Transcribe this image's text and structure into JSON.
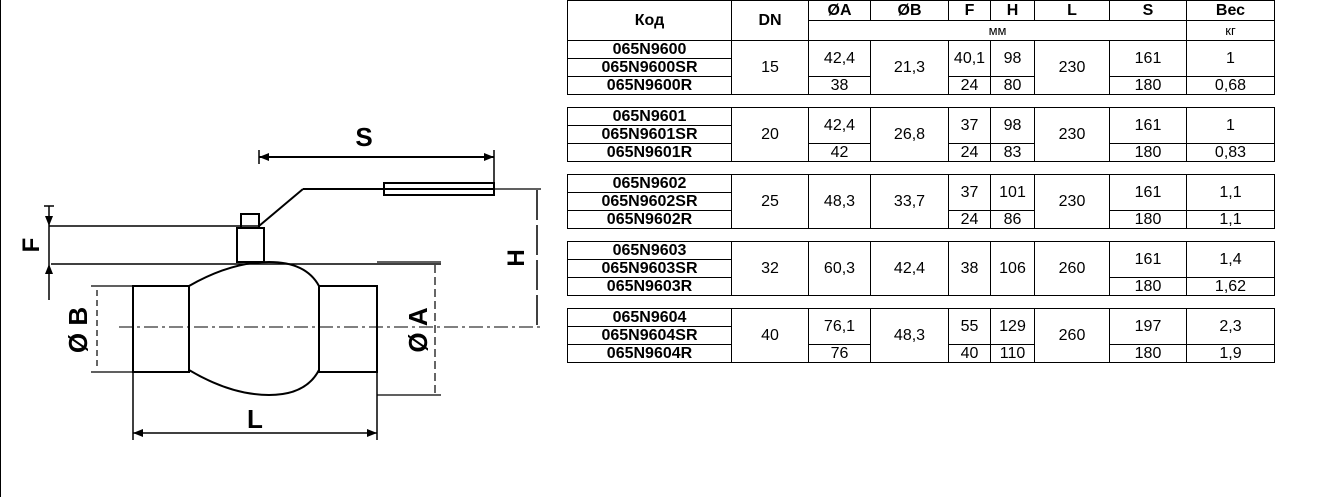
{
  "drawing": {
    "labels": {
      "S": "S",
      "F": "F",
      "H": "H",
      "B": "Ø B",
      "A": "Ø A",
      "L": "L"
    }
  },
  "table": {
    "headers": {
      "code": "Код",
      "dn": "DN",
      "a": "ØA",
      "b": "ØB",
      "f": "F",
      "h": "H",
      "l": "L",
      "s": "S",
      "weight": "Вес"
    },
    "units": {
      "mm": "мм",
      "kg": "кг"
    },
    "groups": [
      {
        "codes": [
          "065N9600",
          "065N9600SR",
          "065N9600R"
        ],
        "dn": "15",
        "a_top": "42,4",
        "a_bot": "38",
        "b": "21,3",
        "f_top": "40,1",
        "f_bot": "24",
        "h_top": "98",
        "h_bot": "80",
        "l": "230",
        "s_top": "161",
        "s_bot": "180",
        "w_top": "1",
        "w_bot": "0,68"
      },
      {
        "codes": [
          "065N9601",
          "065N9601SR",
          "065N9601R"
        ],
        "dn": "20",
        "a_top": "42,4",
        "a_bot": "42",
        "b": "26,8",
        "f_top": "37",
        "f_bot": "24",
        "h_top": "98",
        "h_bot": "83",
        "l": "230",
        "s_top": "161",
        "s_bot": "180",
        "w_top": "1",
        "w_bot": "0,83"
      },
      {
        "codes": [
          "065N9602",
          "065N9602SR",
          "065N9602R"
        ],
        "dn": "25",
        "a": "48,3",
        "b": "33,7",
        "f_top": "37",
        "f_bot": "24",
        "h_top": "101",
        "h_bot": "86",
        "l": "230",
        "s_top": "161",
        "s_bot": "180",
        "w_top": "1,1",
        "w_bot": "1,1"
      },
      {
        "codes": [
          "065N9603",
          "065N9603SR",
          "065N9603R"
        ],
        "dn": "32",
        "a": "60,3",
        "b": "42,4",
        "f": "38",
        "h": "106",
        "l": "260",
        "s_top": "161",
        "s_bot": "180",
        "w_top": "1,4",
        "w_bot": "1,62"
      },
      {
        "codes": [
          "065N9604",
          "065N9604SR",
          "065N9604R"
        ],
        "dn": "40",
        "a_top": "76,1",
        "a_bot": "76",
        "b": "48,3",
        "f_top": "55",
        "f_bot": "40",
        "h_top": "129",
        "h_bot": "110",
        "l": "260",
        "s_top": "197",
        "s_bot": "180",
        "w_top": "2,3",
        "w_bot": "1,9"
      }
    ]
  }
}
